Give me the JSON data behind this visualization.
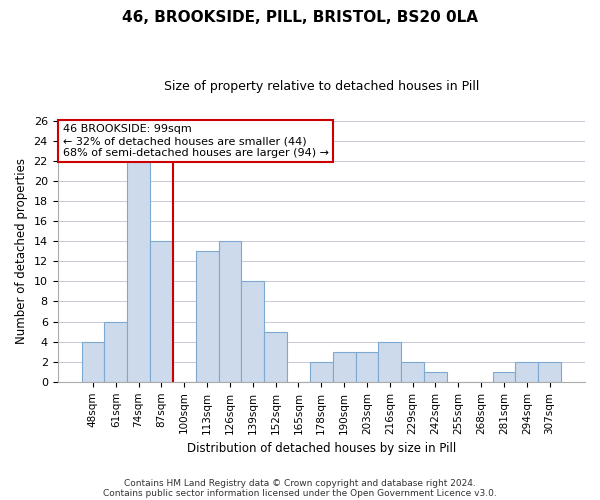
{
  "title": "46, BROOKSIDE, PILL, BRISTOL, BS20 0LA",
  "subtitle": "Size of property relative to detached houses in Pill",
  "xlabel": "Distribution of detached houses by size in Pill",
  "ylabel": "Number of detached properties",
  "bar_labels": [
    "48sqm",
    "61sqm",
    "74sqm",
    "87sqm",
    "100sqm",
    "113sqm",
    "126sqm",
    "139sqm",
    "152sqm",
    "165sqm",
    "178sqm",
    "190sqm",
    "203sqm",
    "216sqm",
    "229sqm",
    "242sqm",
    "255sqm",
    "268sqm",
    "281sqm",
    "294sqm",
    "307sqm"
  ],
  "bar_values": [
    4,
    6,
    22,
    14,
    0,
    13,
    14,
    10,
    5,
    0,
    2,
    3,
    3,
    4,
    2,
    1,
    0,
    0,
    1,
    2,
    2
  ],
  "bar_color": "#cddaeb",
  "bar_edge_color": "#7da8d0",
  "highlight_line_color": "#cc0000",
  "ylim": [
    0,
    26
  ],
  "yticks": [
    0,
    2,
    4,
    6,
    8,
    10,
    12,
    14,
    16,
    18,
    20,
    22,
    24,
    26
  ],
  "annotation_title": "46 BROOKSIDE: 99sqm",
  "annotation_line1": "← 32% of detached houses are smaller (44)",
  "annotation_line2": "68% of semi-detached houses are larger (94) →",
  "annotation_box_color": "#ffffff",
  "annotation_box_edge": "#cc0000",
  "footer1": "Contains HM Land Registry data © Crown copyright and database right 2024.",
  "footer2": "Contains public sector information licensed under the Open Government Licence v3.0.",
  "background_color": "#ffffff",
  "grid_color": "#c8c8d8"
}
